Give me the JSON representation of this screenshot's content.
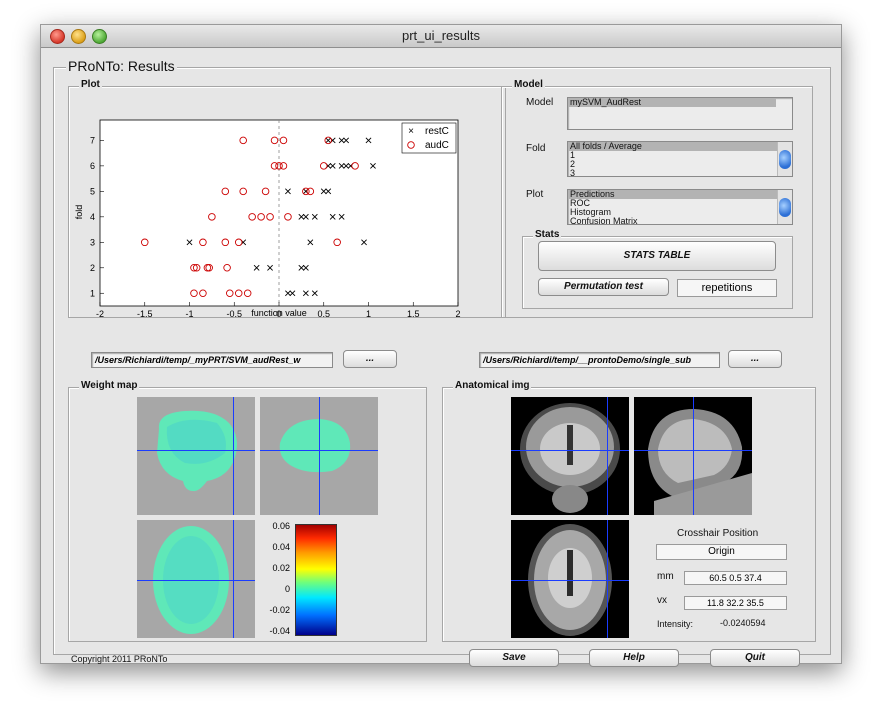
{
  "window": {
    "title": "prt_ui_results"
  },
  "main_title": "PRoNTo: Results",
  "plot_panel": {
    "title": "Plot",
    "legend": [
      {
        "label": "restC",
        "marker": "x",
        "color": "#000000"
      },
      {
        "label": "audC",
        "marker": "o",
        "color": "#cc0000"
      }
    ]
  },
  "chart_data": {
    "type": "scatter",
    "xlabel": "function value",
    "ylabel": "fold",
    "xlim": [
      -2,
      2
    ],
    "ylim": [
      0.5,
      7.8
    ],
    "xticks": [
      "-2",
      "-1.5",
      "-1",
      "-0.5",
      "0",
      "0.5",
      "1",
      "1.5",
      "2"
    ],
    "yticks": [
      "1",
      "2",
      "3",
      "4",
      "5",
      "6",
      "7"
    ],
    "series": [
      {
        "name": "restC",
        "marker": "x",
        "color": "#000000",
        "points": [
          [
            0.55,
            7
          ],
          [
            0.6,
            7
          ],
          [
            0.7,
            7
          ],
          [
            0.75,
            7
          ],
          [
            1.0,
            7
          ],
          [
            0.6,
            6
          ],
          [
            0.7,
            6
          ],
          [
            0.75,
            6
          ],
          [
            0.8,
            6
          ],
          [
            1.05,
            6
          ],
          [
            0.55,
            6
          ],
          [
            0.1,
            5
          ],
          [
            0.3,
            5
          ],
          [
            0.5,
            5
          ],
          [
            0.55,
            5
          ],
          [
            0.25,
            4
          ],
          [
            0.3,
            4
          ],
          [
            0.4,
            4
          ],
          [
            0.6,
            4
          ],
          [
            0.7,
            4
          ],
          [
            -0.4,
            3
          ],
          [
            0.35,
            3
          ],
          [
            0.95,
            3
          ],
          [
            -1.0,
            3
          ],
          [
            -0.25,
            2
          ],
          [
            -0.1,
            2
          ],
          [
            0.25,
            2
          ],
          [
            0.3,
            2
          ],
          [
            0.1,
            1
          ],
          [
            0.15,
            1
          ],
          [
            0.3,
            1
          ],
          [
            0.4,
            1
          ]
        ]
      },
      {
        "name": "audC",
        "marker": "o",
        "color": "#cc0000",
        "points": [
          [
            -0.4,
            7
          ],
          [
            -0.05,
            7
          ],
          [
            0.05,
            7
          ],
          [
            0.55,
            7
          ],
          [
            -0.05,
            6
          ],
          [
            0.0,
            6
          ],
          [
            0.05,
            6
          ],
          [
            0.5,
            6
          ],
          [
            0.85,
            6
          ],
          [
            -0.6,
            5
          ],
          [
            -0.4,
            5
          ],
          [
            -0.15,
            5
          ],
          [
            0.3,
            5
          ],
          [
            0.35,
            5
          ],
          [
            -0.75,
            4
          ],
          [
            -0.3,
            4
          ],
          [
            -0.2,
            4
          ],
          [
            -0.1,
            4
          ],
          [
            0.1,
            4
          ],
          [
            -1.5,
            3
          ],
          [
            -0.85,
            3
          ],
          [
            -0.6,
            3
          ],
          [
            -0.45,
            3
          ],
          [
            0.65,
            3
          ],
          [
            -0.95,
            2
          ],
          [
            -0.92,
            2
          ],
          [
            -0.8,
            2
          ],
          [
            -0.78,
            2
          ],
          [
            -0.58,
            2
          ],
          [
            -0.95,
            1
          ],
          [
            -0.85,
            1
          ],
          [
            -0.55,
            1
          ],
          [
            -0.45,
            1
          ],
          [
            -0.35,
            1
          ]
        ]
      }
    ]
  },
  "model_panel": {
    "title": "Model",
    "model_label": "Model",
    "model_items": [
      "mySVM_AudRest"
    ],
    "fold_label": "Fold",
    "fold_items": [
      "All folds / Average",
      "1",
      "2",
      "3"
    ],
    "plot_label": "Plot",
    "plot_items": [
      "Predictions",
      "ROC",
      "Histogram",
      "Confusion Matrix"
    ]
  },
  "stats": {
    "title": "Stats",
    "stats_table_button": "STATS TABLE",
    "permutation_button": "Permutation test",
    "repetitions_input": "repetitions"
  },
  "paths": {
    "left": "/Users/Richiardi/temp/_myPRT/SVM_audRest_w",
    "left_button": "...",
    "right": "/Users/Richiardi/temp/__prontoDemo/single_sub",
    "right_button": "..."
  },
  "weight_map": {
    "title": "Weight map",
    "colorbar_ticks": [
      "0.06",
      "0.04",
      "0.02",
      "0",
      "-0.02",
      "-0.04"
    ]
  },
  "anatomical": {
    "title": "Anatomical img",
    "crosshair_title": "Crosshair Position",
    "origin_button": "Origin",
    "mm_label": "mm",
    "mm_value": "60.5 0.5 37.4",
    "vx_label": "vx",
    "vx_value": "11.8 32.2 35.5",
    "intensity_label": "Intensity:",
    "intensity_value": "-0.0240594"
  },
  "footer": {
    "copyright": "Copyright 2011 PRoNTo",
    "save_button": "Save",
    "help_button": "Help",
    "quit_button": "Quit"
  }
}
